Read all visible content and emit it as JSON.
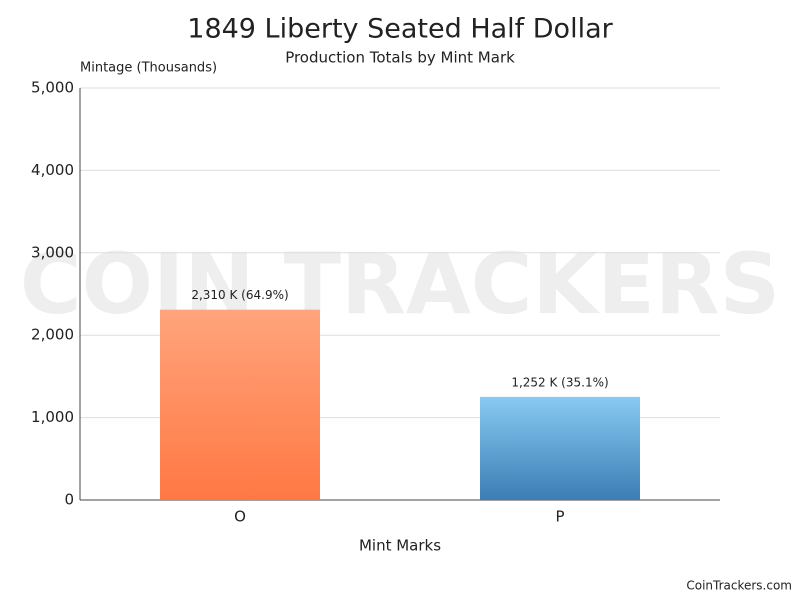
{
  "chart_data": {
    "type": "bar",
    "title": "1849 Liberty Seated Half Dollar",
    "subtitle": "Production Totals by Mint Mark",
    "y_label": "Mintage (Thousands)",
    "x_label": "Mint Marks",
    "watermark": "COIN TRACKERS",
    "credit": "CoinTrackers.com",
    "categories": [
      "O",
      "P"
    ],
    "values": [
      2310,
      1252
    ],
    "value_labels": [
      "2,310 K (64.9%)",
      "1,252 K (35.1%)"
    ],
    "colors": [
      [
        "#ffa47c",
        "#ff7843"
      ],
      [
        "#88caf3",
        "#3c7db4"
      ]
    ],
    "ylim": [
      0,
      5000
    ],
    "yticks": [
      0,
      {
        "value": 1000,
        "label": "1,000"
      },
      {
        "value": 2000,
        "label": "2,000"
      },
      {
        "value": 3000,
        "label": "3,000"
      },
      {
        "value": 4000,
        "label": "4,000"
      },
      {
        "value": 5000,
        "label": "5,000"
      }
    ],
    "grid": true
  }
}
